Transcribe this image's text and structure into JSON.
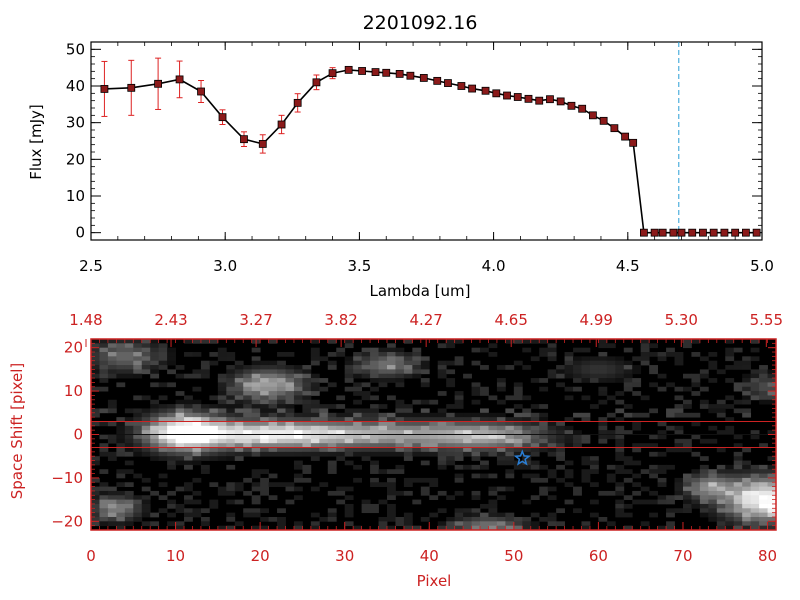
{
  "chart_data": [
    {
      "type": "line",
      "title": "2201092.16",
      "xlabel": "Lambda [um]",
      "ylabel": "Flux [mJy]",
      "xlim": [
        2.5,
        5.0
      ],
      "ylim": [
        -2,
        52
      ],
      "xticks": [
        "2.5",
        "3.0",
        "3.5",
        "4.0",
        "4.5",
        "5.0"
      ],
      "yticks": [
        "0",
        "10",
        "20",
        "30",
        "40",
        "50"
      ],
      "marker_color": "#8b1a1a",
      "errorbar_color": "#dd2222",
      "cutoff_line": {
        "x": 4.69,
        "color": "#2a9fd6",
        "style": "dashed"
      },
      "series": [
        {
          "x": [
            2.55,
            2.65,
            2.75,
            2.83,
            2.91,
            2.99,
            3.07,
            3.14,
            3.21,
            3.27,
            3.34,
            3.4,
            3.46,
            3.51,
            3.56,
            3.6,
            3.65,
            3.69,
            3.74,
            3.79,
            3.83,
            3.88,
            3.92,
            3.97,
            4.01,
            4.05,
            4.09,
            4.13,
            4.17,
            4.21,
            4.25,
            4.29,
            4.33,
            4.37,
            4.41,
            4.45,
            4.49,
            4.52,
            4.56,
            4.6,
            4.63,
            4.67,
            4.7,
            4.74,
            4.78,
            4.82,
            4.86,
            4.9,
            4.94,
            4.98
          ],
          "y": [
            39.2,
            39.5,
            40.6,
            41.8,
            38.5,
            31.5,
            25.5,
            24.2,
            29.5,
            35.4,
            41.0,
            43.5,
            44.4,
            44.1,
            43.8,
            43.6,
            43.3,
            42.8,
            42.2,
            41.4,
            40.8,
            40.0,
            39.3,
            38.7,
            38.0,
            37.4,
            37.0,
            36.5,
            36.0,
            36.4,
            35.8,
            34.6,
            33.8,
            32.0,
            30.5,
            28.5,
            26.2,
            24.5,
            0.0,
            0.0,
            0.0,
            0.0,
            0.0,
            0.0,
            0.0,
            0.0,
            0.0,
            0.0,
            0.0,
            0.0
          ],
          "yerr": [
            7.5,
            7.5,
            7.0,
            5.0,
            3.0,
            2.0,
            2.0,
            2.5,
            2.5,
            2.5,
            2.0,
            1.5,
            0.8,
            0.6,
            0.6,
            0.6,
            0.5,
            0.5,
            0.5,
            0.5,
            0.5,
            0.5,
            0.5,
            0.5,
            0.5,
            0.5,
            0.5,
            0.5,
            0.5,
            0.5,
            0.5,
            0.5,
            0.5,
            0.5,
            0.5,
            0.5,
            0.5,
            0.5,
            0.0,
            0.0,
            0.0,
            0.0,
            0.0,
            0.0,
            0.0,
            0.0,
            0.0,
            0.0,
            0.0,
            0.0
          ]
        }
      ]
    },
    {
      "type": "heatmap",
      "xlabel": "Pixel",
      "ylabel": "Space Shift [pixel]",
      "xlim": [
        0,
        81
      ],
      "ylim": [
        -22,
        22
      ],
      "xticks": [
        "0",
        "10",
        "20",
        "30",
        "40",
        "50",
        "60",
        "70",
        "80"
      ],
      "yticks": [
        "-20",
        "-10",
        "0",
        "10",
        "20"
      ],
      "top_ticks": [
        "1.48",
        "2.43",
        "3.27",
        "3.82",
        "4.27",
        "4.65",
        "4.99",
        "5.30",
        "5.55"
      ],
      "axis_color": "#cc2222",
      "aperture_lines": {
        "y": [
          3,
          -3
        ],
        "color": "#cc2222"
      },
      "center_line": {
        "y": 0,
        "color": "#111111"
      },
      "star_marker": {
        "x": 51,
        "y": -5.5,
        "color": "#2a7fd6"
      },
      "sources": [
        {
          "x": 11,
          "y": 0.5,
          "sx": 3.2,
          "sy": 3.0,
          "amp": 1.0
        },
        {
          "x": 20,
          "y": 0,
          "sx": 6,
          "sy": 2.2,
          "amp": 0.7
        },
        {
          "x": 33,
          "y": 0,
          "sx": 9,
          "sy": 2.2,
          "amp": 0.62
        },
        {
          "x": 47,
          "y": -0.5,
          "sx": 5,
          "sy": 2.3,
          "amp": 0.5
        },
        {
          "x": 21,
          "y": 11.5,
          "sx": 3,
          "sy": 2.5,
          "amp": 0.62
        },
        {
          "x": 35,
          "y": 16,
          "sx": 2.5,
          "sy": 2,
          "amp": 0.45
        },
        {
          "x": 80,
          "y": -15,
          "sx": 3.5,
          "sy": 3.5,
          "amp": 1.0
        },
        {
          "x": 73,
          "y": -12,
          "sx": 2,
          "sy": 2,
          "amp": 0.5
        },
        {
          "x": 3,
          "y": -17,
          "sx": 2,
          "sy": 2,
          "amp": 0.5
        },
        {
          "x": 47,
          "y": -21,
          "sx": 3,
          "sy": 1.5,
          "amp": 0.45
        },
        {
          "x": 4,
          "y": 18,
          "sx": 3,
          "sy": 2.5,
          "amp": 0.4
        },
        {
          "x": 80,
          "y": 11,
          "sx": 2,
          "sy": 2,
          "amp": 0.3
        },
        {
          "x": 60,
          "y": 15,
          "sx": 3,
          "sy": 2,
          "amp": 0.2
        }
      ]
    }
  ]
}
